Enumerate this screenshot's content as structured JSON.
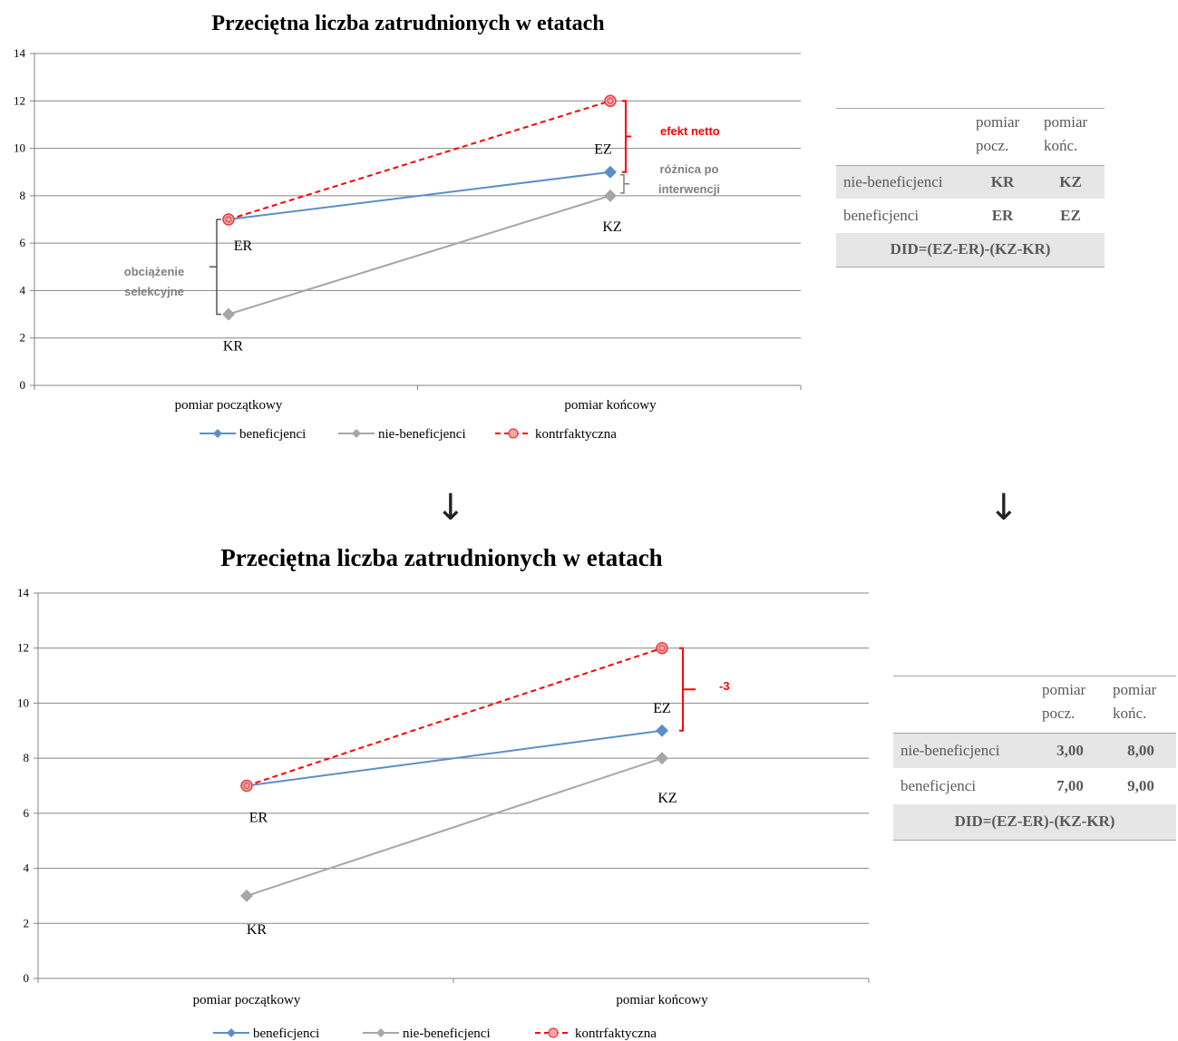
{
  "colors": {
    "beneficjenci": "#5b8ec9",
    "nie_beneficjenci": "#a6a6a6",
    "kontrfaktyczna": "#ff0000",
    "annotation_red": "#ff0000",
    "annotation_gray": "#808080",
    "grid": "#868686",
    "table_shade": "#e6e6e6"
  },
  "chart_data": [
    {
      "type": "line",
      "title": "Przeciętna liczba zatrudnionych  w etatach",
      "categories": [
        "pomiar początkowy",
        "pomiar końcowy"
      ],
      "ylim": [
        0,
        14
      ],
      "yticks": [
        "0",
        "2",
        "4",
        "6",
        "8",
        "10",
        "12",
        "14"
      ],
      "grid": true,
      "legend_position": "bottom",
      "series": [
        {
          "name": "beneficjenci",
          "values": [
            7,
            9
          ],
          "marker": "diamond",
          "style": "solid"
        },
        {
          "name": "nie-beneficjenci",
          "values": [
            3,
            8
          ],
          "marker": "diamond",
          "style": "solid"
        },
        {
          "name": "kontrfaktyczna",
          "values": [
            7,
            12
          ],
          "marker": "circle",
          "style": "dashed"
        }
      ],
      "point_labels": {
        "ER": "ER",
        "EZ": "EZ",
        "KR": "KR",
        "KZ": "KZ"
      },
      "annotations": {
        "net_effect": "efekt netto",
        "diff_after_line1": "różnica po",
        "diff_after_line2": "interwencji",
        "selection_line1": "obciążenie",
        "selection_line2": "selekcyjne"
      }
    },
    {
      "type": "line",
      "title": "Przeciętna liczba zatrudnionych  w etatach",
      "categories": [
        "pomiar początkowy",
        "pomiar końcowy"
      ],
      "ylim": [
        0,
        14
      ],
      "yticks": [
        "0",
        "2",
        "4",
        "6",
        "8",
        "10",
        "12",
        "14"
      ],
      "grid": true,
      "legend_position": "bottom",
      "series": [
        {
          "name": "beneficjenci",
          "values": [
            7,
            9
          ],
          "marker": "diamond",
          "style": "solid"
        },
        {
          "name": "nie-beneficjenci",
          "values": [
            3,
            8
          ],
          "marker": "diamond",
          "style": "solid"
        },
        {
          "name": "kontrfaktyczna",
          "values": [
            7,
            12
          ],
          "marker": "circle",
          "style": "dashed"
        }
      ],
      "point_labels": {
        "ER": "ER",
        "EZ": "EZ",
        "KR": "KR",
        "KZ": "KZ"
      },
      "annotations": {
        "net_effect": "-3"
      }
    }
  ],
  "tables": [
    {
      "header": [
        "",
        "pomiar\npocz.",
        "pomiar\nkońc."
      ],
      "col1_l1": "pomiar",
      "col1_l2": "pocz.",
      "col2_l1": "pomiar",
      "col2_l2": "końc.",
      "rows": [
        {
          "label": "nie-beneficjenci",
          "v1": "KR",
          "v2": "KZ"
        },
        {
          "label": "beneficjenci",
          "v1": "ER",
          "v2": "EZ"
        }
      ],
      "formula": "DID=(EZ-ER)-(KZ-KR)"
    },
    {
      "col1_l1": "pomiar",
      "col1_l2": "pocz.",
      "col2_l1": "pomiar",
      "col2_l2": "końc.",
      "rows": [
        {
          "label": "nie-beneficjenci",
          "v1": "3,00",
          "v2": "8,00"
        },
        {
          "label": "beneficjenci",
          "v1": "7,00",
          "v2": "9,00"
        }
      ],
      "formula": "DID=(EZ-ER)-(KZ-KR)"
    }
  ],
  "arrows": [
    "↓",
    "↓"
  ]
}
